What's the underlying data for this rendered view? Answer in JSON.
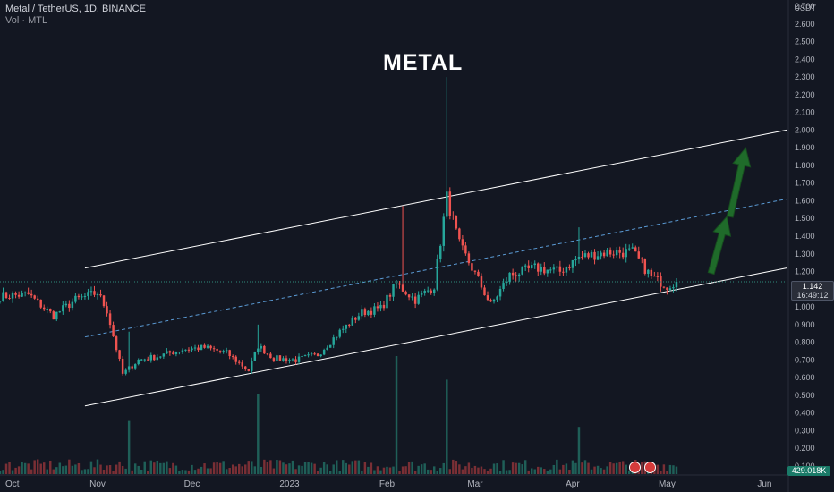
{
  "header": {
    "symbol_line": "Metal / TetherUS, 1D, BINANCE",
    "volume_line": "Vol · MTL"
  },
  "annotation": {
    "title": "METAL"
  },
  "axis": {
    "currency": "USDT",
    "y_ticks": [
      "2.700",
      "2.600",
      "2.500",
      "2.400",
      "2.300",
      "2.200",
      "2.100",
      "2.000",
      "1.900",
      "1.800",
      "1.700",
      "1.600",
      "1.500",
      "1.400",
      "1.300",
      "1.200",
      "1.000",
      "0.900",
      "0.800",
      "0.700",
      "0.600",
      "0.500",
      "0.400",
      "0.300",
      "0.200",
      "0.100"
    ],
    "x_ticks": [
      "Oct",
      "Nov",
      "Dec",
      "2023",
      "Feb",
      "Mar",
      "Apr",
      "May",
      "Jun"
    ]
  },
  "badges": {
    "last_price": "1.142",
    "countdown": "16:49:12",
    "volume": "429.018K"
  },
  "colors": {
    "background": "#131722",
    "up": "#26a69a",
    "down": "#ef5350",
    "channel": "#ffffff",
    "midline": "#5b9bd5",
    "arrow": "#1f6b2a"
  },
  "chart_data": {
    "type": "candlestick",
    "title": "METAL",
    "ylabel": "USDT",
    "ylim": [
      0.1,
      2.7
    ],
    "y_scale": "linear",
    "x_range": [
      "2022-10-01",
      "2023-06-06"
    ],
    "grid": false,
    "last_price": 1.142,
    "series": [
      {
        "name": "Price",
        "points": [
          [
            "2022-10-01",
            1.06
          ],
          [
            "2022-10-10",
            1.07
          ],
          [
            "2022-10-18",
            0.95
          ],
          [
            "2022-10-25",
            1.04
          ],
          [
            "2022-11-01",
            1.08
          ],
          [
            "2022-11-04",
            0.98
          ],
          [
            "2022-11-09",
            0.62
          ],
          [
            "2022-11-14",
            0.7
          ],
          [
            "2022-11-20",
            0.72
          ],
          [
            "2022-11-28",
            0.76
          ],
          [
            "2022-12-05",
            0.77
          ],
          [
            "2022-12-12",
            0.74
          ],
          [
            "2022-12-19",
            0.64
          ],
          [
            "2022-12-22",
            0.78
          ],
          [
            "2022-12-27",
            0.71
          ],
          [
            "2023-01-03",
            0.7
          ],
          [
            "2023-01-10",
            0.73
          ],
          [
            "2023-01-17",
            0.86
          ],
          [
            "2023-01-24",
            0.97
          ],
          [
            "2023-01-30",
            0.99
          ],
          [
            "2023-02-04",
            1.13
          ],
          [
            "2023-02-10",
            1.04
          ],
          [
            "2023-02-16",
            1.12
          ],
          [
            "2023-02-20",
            1.62
          ],
          [
            "2023-02-24",
            1.35
          ],
          [
            "2023-02-28",
            1.22
          ],
          [
            "2023-03-06",
            1.01
          ],
          [
            "2023-03-12",
            1.18
          ],
          [
            "2023-03-20",
            1.22
          ],
          [
            "2023-03-28",
            1.2
          ],
          [
            "2023-04-03",
            1.28
          ],
          [
            "2023-04-12",
            1.31
          ],
          [
            "2023-04-20",
            1.31
          ],
          [
            "2023-04-26",
            1.17
          ],
          [
            "2023-05-01",
            1.12
          ],
          [
            "2023-05-04",
            1.142
          ]
        ]
      }
    ],
    "spikes": [
      {
        "date": "2022-11-11",
        "high": 0.86
      },
      {
        "date": "2022-12-22",
        "high": 0.9
      },
      {
        "date": "2023-02-06",
        "high": 1.57
      },
      {
        "date": "2023-02-20",
        "high": 2.3
      },
      {
        "date": "2023-04-03",
        "high": 1.45
      }
    ],
    "volume": {
      "name": "Vol · MTL",
      "last": "429.018K",
      "peaks": [
        {
          "date": "2022-11-11",
          "relative": 0.18
        },
        {
          "date": "2022-12-22",
          "relative": 0.27
        },
        {
          "date": "2023-02-04",
          "relative": 0.4
        },
        {
          "date": "2023-02-20",
          "relative": 0.32
        },
        {
          "date": "2023-04-03",
          "relative": 0.16
        }
      ]
    },
    "trend_channel": {
      "upper": [
        [
          "2022-10-28",
          1.22
        ],
        [
          "2023-06-08",
          2.0
        ]
      ],
      "middle": [
        [
          "2022-10-28",
          0.83
        ],
        [
          "2023-06-08",
          1.61
        ]
      ],
      "lower": [
        [
          "2022-10-28",
          0.44
        ],
        [
          "2023-06-08",
          1.22
        ]
      ]
    },
    "arrows": [
      {
        "from": [
          "2023-05-15",
          1.19
        ],
        "to": [
          "2023-05-20",
          1.51
        ]
      },
      {
        "from": [
          "2023-05-21",
          1.51
        ],
        "to": [
          "2023-05-26",
          1.9
        ]
      }
    ]
  }
}
